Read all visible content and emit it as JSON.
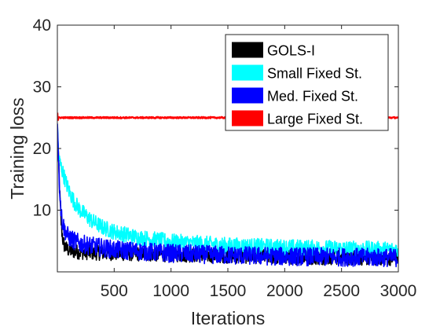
{
  "chart_data": {
    "type": "line",
    "title": "",
    "xlabel": "Iterations",
    "ylabel": "Training loss",
    "xlim": [
      0,
      3000
    ],
    "ylim": [
      0,
      40
    ],
    "xticks": [
      500,
      1000,
      1500,
      2000,
      2500,
      3000
    ],
    "yticks": [
      10,
      20,
      30,
      40
    ],
    "grid": false,
    "legend_position": "top-right",
    "series": [
      {
        "name": "GOLS-I",
        "color": "#000000",
        "x": [
          1,
          10,
          20,
          30,
          40,
          50,
          60,
          80,
          100,
          150,
          200,
          300,
          500,
          1000,
          1500,
          2000,
          2500,
          3000
        ],
        "y": [
          23,
          19,
          13,
          9,
          6.5,
          5,
          4.3,
          3.8,
          3.5,
          3.3,
          3.2,
          3.1,
          3.0,
          2.8,
          2.6,
          2.4,
          2.3,
          2.2
        ],
        "noise": 1.2
      },
      {
        "name": "Small Fixed St.",
        "color": "#00ffff",
        "x": [
          1,
          10,
          50,
          100,
          150,
          200,
          300,
          400,
          500,
          700,
          1000,
          1500,
          2000,
          2500,
          3000
        ],
        "y": [
          24,
          18.5,
          16,
          13.2,
          11.3,
          10,
          8.3,
          7.2,
          6.5,
          5.6,
          4.9,
          4.3,
          4.0,
          3.8,
          3.6
        ],
        "noise": 1.3
      },
      {
        "name": "Med. Fixed St.",
        "color": "#0000ff",
        "x": [
          1,
          10,
          20,
          30,
          40,
          60,
          80,
          100,
          150,
          200,
          300,
          500,
          1000,
          1500,
          2000,
          2500,
          3000
        ],
        "y": [
          24,
          18.5,
          14,
          10.5,
          8.5,
          7,
          6.2,
          5.6,
          5.0,
          4.6,
          4.2,
          3.6,
          3.0,
          2.7,
          2.5,
          2.4,
          2.3
        ],
        "noise": 1.5
      },
      {
        "name": "Large Fixed St.",
        "color": "#ff0000",
        "x": [
          1,
          5,
          10,
          3000
        ],
        "y": [
          25.8,
          24.4,
          25,
          25
        ],
        "noise": 0.12
      }
    ]
  }
}
